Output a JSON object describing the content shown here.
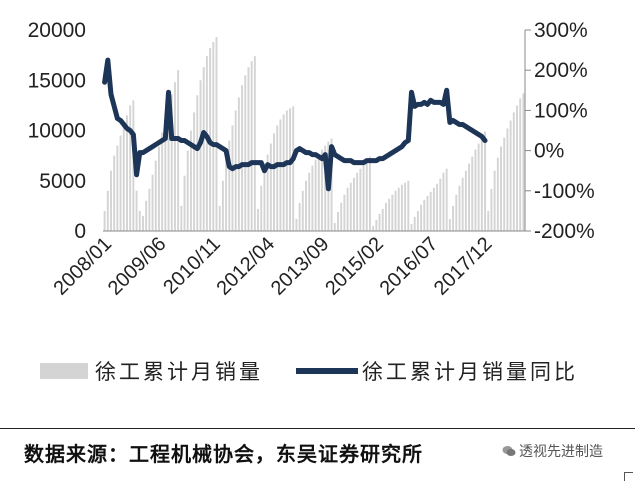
{
  "chart_data": {
    "type": "bar+line",
    "y_left": {
      "ticks": [
        "20000",
        "15000",
        "10000",
        "5000",
        "0"
      ],
      "range": [
        0,
        20000
      ]
    },
    "y_right": {
      "ticks": [
        "300%",
        "200%",
        "100%",
        "0%",
        "-100%",
        "-200%"
      ],
      "range": [
        -200,
        300
      ]
    },
    "x_ticks": [
      "2008/01",
      "2009/06",
      "2010/11",
      "2012/04",
      "2013/09",
      "2015/02",
      "2016/07",
      "2017/12"
    ],
    "x_range": [
      "2008/01",
      "2018/12"
    ],
    "series": [
      {
        "name": "徐工累计月销量",
        "type": "bar",
        "color": "#d4d4d4",
        "values": [
          2000,
          4000,
          6000,
          7500,
          8500,
          9500,
          10500,
          11500,
          12500,
          13000,
          4000,
          2000,
          1500,
          3000,
          4200,
          5600,
          7000,
          8400,
          9800,
          11000,
          12400,
          13600,
          14800,
          16000,
          2500,
          5500,
          8000,
          10000,
          11800,
          13500,
          15000,
          16300,
          17400,
          18200,
          18800,
          19300,
          2500,
          5000,
          7500,
          9000,
          10500,
          12000,
          13300,
          14500,
          15500,
          16300,
          16900,
          17400,
          2200,
          4500,
          6300,
          7600,
          8700,
          9700,
          10500,
          11100,
          11600,
          12000,
          12200,
          12400,
          1200,
          2800,
          4000,
          5000,
          5800,
          6500,
          7100,
          7600,
          8100,
          8500,
          8900,
          9200,
          800,
          1900,
          2800,
          3600,
          4300,
          4800,
          5300,
          5800,
          6200,
          6600,
          7000,
          7400,
          500,
          1100,
          1700,
          2200,
          2800,
          3200,
          3600,
          4000,
          4300,
          4600,
          4800,
          5000,
          700,
          1400,
          2000,
          2600,
          3100,
          3500,
          3900,
          4300,
          4700,
          5200,
          5800,
          6200,
          1200,
          2500,
          3600,
          4500,
          5300,
          6000,
          6700,
          7400,
          8100,
          8700,
          9300,
          9900,
          2000,
          4200,
          6000,
          7300,
          8400,
          9300,
          10200,
          11000,
          11800,
          12500,
          13200,
          13700
        ]
      },
      {
        "name": "徐工累计月销量同比",
        "type": "line",
        "color": "#1d3557",
        "values": [
          170,
          225,
          140,
          110,
          80,
          75,
          65,
          55,
          50,
          40,
          -60,
          -5,
          -5,
          0,
          5,
          10,
          15,
          20,
          25,
          30,
          145,
          30,
          30,
          30,
          25,
          25,
          20,
          15,
          10,
          5,
          20,
          45,
          35,
          20,
          15,
          15,
          10,
          5,
          0,
          -40,
          -45,
          -40,
          -40,
          -35,
          -35,
          -35,
          -30,
          -30,
          -30,
          -30,
          -50,
          -35,
          -40,
          -40,
          -35,
          -35,
          -35,
          -30,
          -30,
          -20,
          0,
          5,
          0,
          -5,
          -5,
          -10,
          -10,
          -15,
          -20,
          -10,
          -95,
          10,
          -10,
          -15,
          -20,
          -25,
          -25,
          -25,
          -30,
          -30,
          -30,
          -30,
          -25,
          -25,
          -25,
          -25,
          -20,
          -20,
          -15,
          -10,
          -5,
          0,
          5,
          10,
          20,
          25,
          145,
          110,
          115,
          115,
          120,
          115,
          125,
          120,
          120,
          120,
          115,
          150,
          70,
          75,
          70,
          65,
          65,
          60,
          55,
          50,
          45,
          40,
          35,
          25
        ]
      }
    ]
  },
  "source": "数据来源：工程机械协会，东吴证券研究所",
  "watermark": "透视先进制造"
}
